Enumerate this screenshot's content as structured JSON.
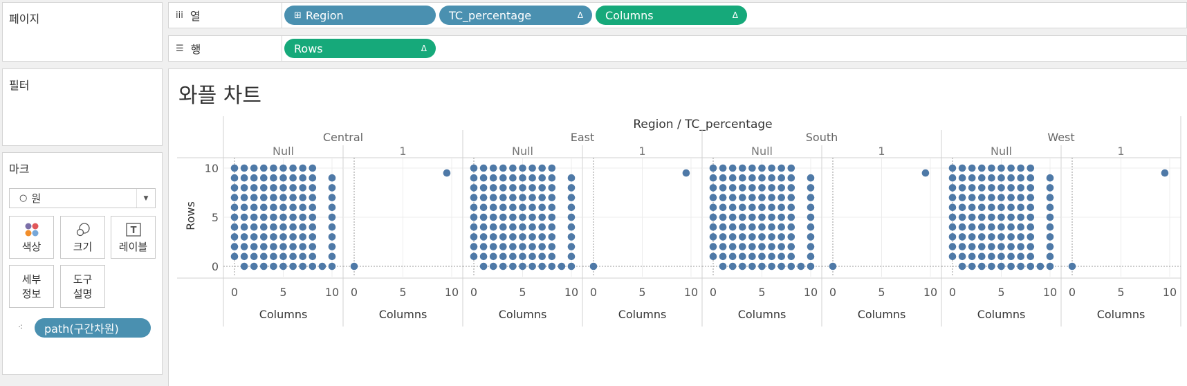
{
  "sidebar": {
    "pages_label": "페이지",
    "filters_label": "필터",
    "marks_label": "마크",
    "mark_type": "원",
    "mark_buttons": {
      "color": "색상",
      "size": "크기",
      "label": "레이블",
      "detail_line1": "세부",
      "detail_line2": "정보",
      "tooltip_line1": "도구",
      "tooltip_line2": "설명"
    },
    "detail_pill": "path(구간차원)"
  },
  "shelves": {
    "columns_label": "열",
    "rows_label": "행",
    "column_pills": [
      "Region",
      "TC_percentage",
      "Columns"
    ],
    "row_pills": [
      "Rows"
    ],
    "delta_symbol": "Δ"
  },
  "chart_title": "와플 차트",
  "chart_data": {
    "type": "scatter",
    "header_title": "Region / TC_percentage",
    "regions": [
      "Central",
      "East",
      "South",
      "West"
    ],
    "tc_values": [
      "Null",
      "1"
    ],
    "xlabel": "Columns",
    "ylabel": "Rows",
    "xlim": [
      0,
      10
    ],
    "ylim": [
      0,
      10
    ],
    "x_ticks": [
      "0",
      "5",
      "10"
    ],
    "y_ticks": [
      "0",
      "5",
      "10"
    ],
    "mark_color": "#4e79a7",
    "null_points_description": "grid x 0-9, y 1-10 plus x 1-9 at y 0 and x 9 at y 1",
    "one_points": [
      [
        0,
        0
      ],
      [
        9.5,
        9.5
      ]
    ]
  }
}
